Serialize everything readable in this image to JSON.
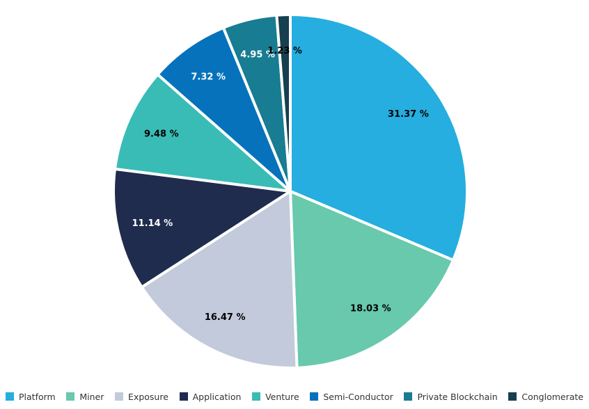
{
  "chart_data": {
    "type": "pie",
    "categories": [
      "Platform",
      "Miner",
      "Exposure",
      "Application",
      "Venture",
      "Semi-Conductor",
      "Private Blockchain",
      "Conglomerate"
    ],
    "values": [
      31.37,
      18.03,
      16.47,
      11.14,
      9.48,
      7.32,
      4.95,
      1.23
    ],
    "data_labels": [
      "31.37 %",
      "18.03 %",
      "16.47 %",
      "11.14 %",
      "9.48 %",
      "7.32 %",
      "4.95 %",
      "1.23 %"
    ],
    "colors": [
      "#25aedf",
      "#68c9ac",
      "#c2cadb",
      "#1f2c4e",
      "#39bcb6",
      "#0672bb",
      "#187c92",
      "#173f4f"
    ],
    "label_colors": [
      "#000000",
      "#000000",
      "#000000",
      "#ffffff",
      "#000000",
      "#ffffff",
      "#ffffff",
      "#000000"
    ],
    "start_angle_deg": 0,
    "direction": "clockwise",
    "slice_border_color": "#ffffff",
    "legend_position": "bottom"
  }
}
